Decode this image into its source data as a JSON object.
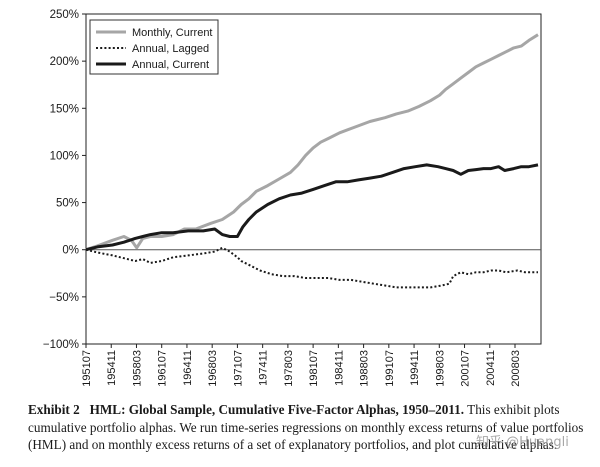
{
  "chart_data": {
    "type": "line",
    "title": "HML: Global Sample, Cumulative Five-Factor Alphas, 1950–2011.",
    "xlabel": "",
    "ylabel": "",
    "ylim": [
      -100,
      250
    ],
    "y_ticks": [
      "250%",
      "200%",
      "150%",
      "100%",
      "50%",
      "0%",
      "−50%",
      "−100%"
    ],
    "y_tick_values": [
      250,
      200,
      150,
      100,
      50,
      0,
      -50,
      -100
    ],
    "x_ticks": [
      "195107",
      "195411",
      "195803",
      "196107",
      "196411",
      "196803",
      "197107",
      "197411",
      "197803",
      "198107",
      "198411",
      "198803",
      "199107",
      "199411",
      "199803",
      "200107",
      "200411",
      "200803"
    ],
    "legend_placement": "top-left",
    "series": [
      {
        "name": "Monthly, Current",
        "style": "solid-gray",
        "color": "#a6a6a6",
        "x": [
          1951.5,
          1953,
          1955,
          1956.5,
          1957.5,
          1958.2,
          1959,
          1960,
          1961.5,
          1963,
          1964.5,
          1966,
          1968,
          1969.5,
          1971,
          1972,
          1973,
          1974,
          1975.5,
          1977,
          1978.5,
          1979.5,
          1980.5,
          1981.5,
          1982.5,
          1983.5,
          1985,
          1987,
          1989,
          1991,
          1992.5,
          1994,
          1995.5,
          1997,
          1998.2,
          1999,
          2000,
          2001,
          2002,
          2003,
          2004,
          2005,
          2006,
          2007,
          2008,
          2009,
          2010,
          2011.2
        ],
        "values": [
          0,
          4,
          10,
          14,
          10,
          2,
          12,
          14,
          14,
          16,
          22,
          22,
          28,
          32,
          40,
          48,
          54,
          62,
          68,
          75,
          82,
          90,
          100,
          108,
          114,
          118,
          124,
          130,
          136,
          140,
          144,
          147,
          152,
          158,
          164,
          170,
          176,
          182,
          188,
          194,
          198,
          202,
          206,
          210,
          214,
          216,
          222,
          228
        ]
      },
      {
        "name": "Annual, Lagged",
        "style": "dotted",
        "color": "#1a1a1a",
        "x": [
          1951.5,
          1953,
          1955,
          1956.5,
          1958,
          1959,
          1960,
          1961.5,
          1963,
          1965,
          1967,
          1968.5,
          1969.5,
          1970.5,
          1971.5,
          1972,
          1973,
          1974.5,
          1976,
          1977.5,
          1979,
          1980.5,
          1982,
          1983.5,
          1985,
          1986.5,
          1988,
          1989.5,
          1991,
          1992.5,
          1994,
          1995.5,
          1997,
          1998.5,
          1999.5,
          2000,
          2001,
          2002,
          2003,
          2004,
          2005,
          2006,
          2007,
          2008.5,
          2009.5,
          2010.5,
          2011.2
        ],
        "values": [
          0,
          -3,
          -6,
          -9,
          -12,
          -10,
          -14,
          -12,
          -8,
          -6,
          -4,
          -2,
          2,
          -2,
          -8,
          -12,
          -16,
          -22,
          -26,
          -28,
          -28,
          -30,
          -30,
          -30,
          -32,
          -32,
          -34,
          -36,
          -38,
          -40,
          -40,
          -40,
          -40,
          -38,
          -36,
          -28,
          -24,
          -26,
          -24,
          -24,
          -22,
          -22,
          -24,
          -22,
          -24,
          -24,
          -24
        ]
      },
      {
        "name": "Annual, Current",
        "style": "solid-black",
        "color": "#1a1a1a",
        "x": [
          1951.5,
          1953,
          1955,
          1956.5,
          1958,
          1959,
          1960,
          1961.5,
          1963,
          1965,
          1967,
          1968.5,
          1969.5,
          1970.5,
          1971.5,
          1972.2,
          1973,
          1974,
          1975.5,
          1977,
          1978.5,
          1980,
          1981.5,
          1983,
          1984.5,
          1986,
          1987.5,
          1989,
          1990.5,
          1992,
          1993.5,
          1995,
          1996.5,
          1998,
          1999,
          2000,
          2001,
          2002,
          2003,
          2004,
          2005,
          2006,
          2006.8,
          2008,
          2009,
          2010,
          2011.2
        ],
        "values": [
          0,
          3,
          5,
          8,
          12,
          14,
          16,
          18,
          18,
          20,
          20,
          22,
          16,
          14,
          14,
          24,
          32,
          40,
          48,
          54,
          58,
          60,
          64,
          68,
          72,
          72,
          74,
          76,
          78,
          82,
          86,
          88,
          90,
          88,
          86,
          84,
          80,
          84,
          85,
          86,
          86,
          88,
          84,
          86,
          88,
          88,
          90
        ]
      }
    ]
  },
  "caption": {
    "label": "Exhibit 2",
    "title": "HML: Global Sample, Cumulative Five-Factor Alphas, 1950–2011.",
    "text": "This exhibit plots cumulative portfolio alphas. We run time-series regressions on monthly excess returns of value portfolios (HML) and on monthly excess returns of a set of explanatory portfolios, and plot cumulative alphas."
  },
  "watermark": "知乎 @Huangli"
}
